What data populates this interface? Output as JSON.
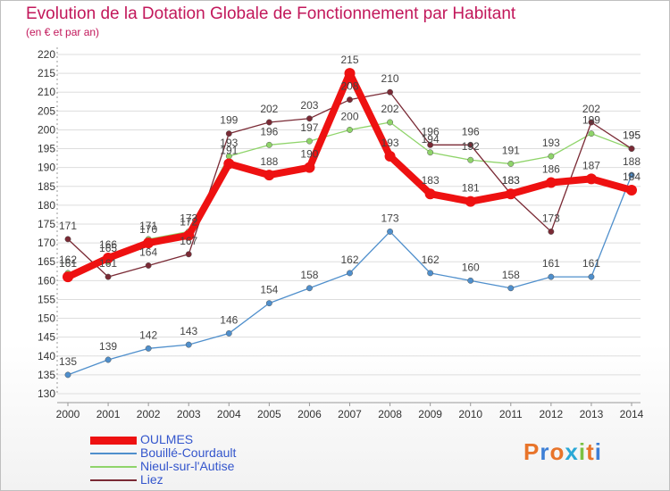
{
  "header": {
    "title": "Evolution de la Dotation Globale de Fonctionnement par Habitant",
    "subtitle": "(en € et par an)"
  },
  "logo": {
    "text": "Proxiti",
    "letter_colors": [
      "#e8742a",
      "#3d7fd6",
      "#e8742a",
      "#2aa8d6",
      "#7ac143",
      "#e8742a",
      "#3d7fd6"
    ]
  },
  "colors": {
    "title": "#c2185b",
    "legend_text": "#3355cc",
    "axis_text": "#333333",
    "grid": "#dddddd"
  },
  "chart_data": {
    "type": "line",
    "title": "Evolution de la Dotation Globale de Fonctionnement par Habitant",
    "subtitle": "(en € et par an)",
    "xlabel": "",
    "ylabel": "",
    "x": [
      "2000",
      "2001",
      "2002",
      "2003",
      "2004",
      "2005",
      "2006",
      "2007",
      "2008",
      "2009",
      "2010",
      "2011",
      "2012",
      "2013",
      "2014"
    ],
    "ylim": [
      130,
      220
    ],
    "yticks": [
      130,
      135,
      140,
      145,
      150,
      155,
      160,
      165,
      170,
      175,
      180,
      185,
      190,
      195,
      200,
      205,
      210,
      215,
      220
    ],
    "grid": "horizontal",
    "legend_position": "bottom-left",
    "series": [
      {
        "name": "OULMES",
        "color": "#ee1111",
        "values": [
          161,
          166,
          170,
          172,
          191,
          188,
          190,
          215,
          193,
          183,
          181,
          183,
          186,
          187,
          184
        ]
      },
      {
        "name": "Bouillé-Courdault",
        "color": "#4f8fcc",
        "values": [
          135,
          139,
          142,
          143,
          146,
          154,
          158,
          162,
          173,
          162,
          160,
          158,
          161,
          161,
          188
        ]
      },
      {
        "name": "Nieul-sur-l'Autise",
        "color": "#8fd46a",
        "values": [
          162,
          165,
          171,
          173,
          193,
          196,
          197,
          200,
          202,
          194,
          192,
          191,
          193,
          199,
          195
        ]
      },
      {
        "name": "Liez",
        "color": "#7a2a35",
        "values": [
          171,
          161,
          164,
          167,
          199,
          202,
          203,
          208,
          210,
          196,
          196,
          183,
          173,
          202,
          195
        ]
      }
    ]
  }
}
